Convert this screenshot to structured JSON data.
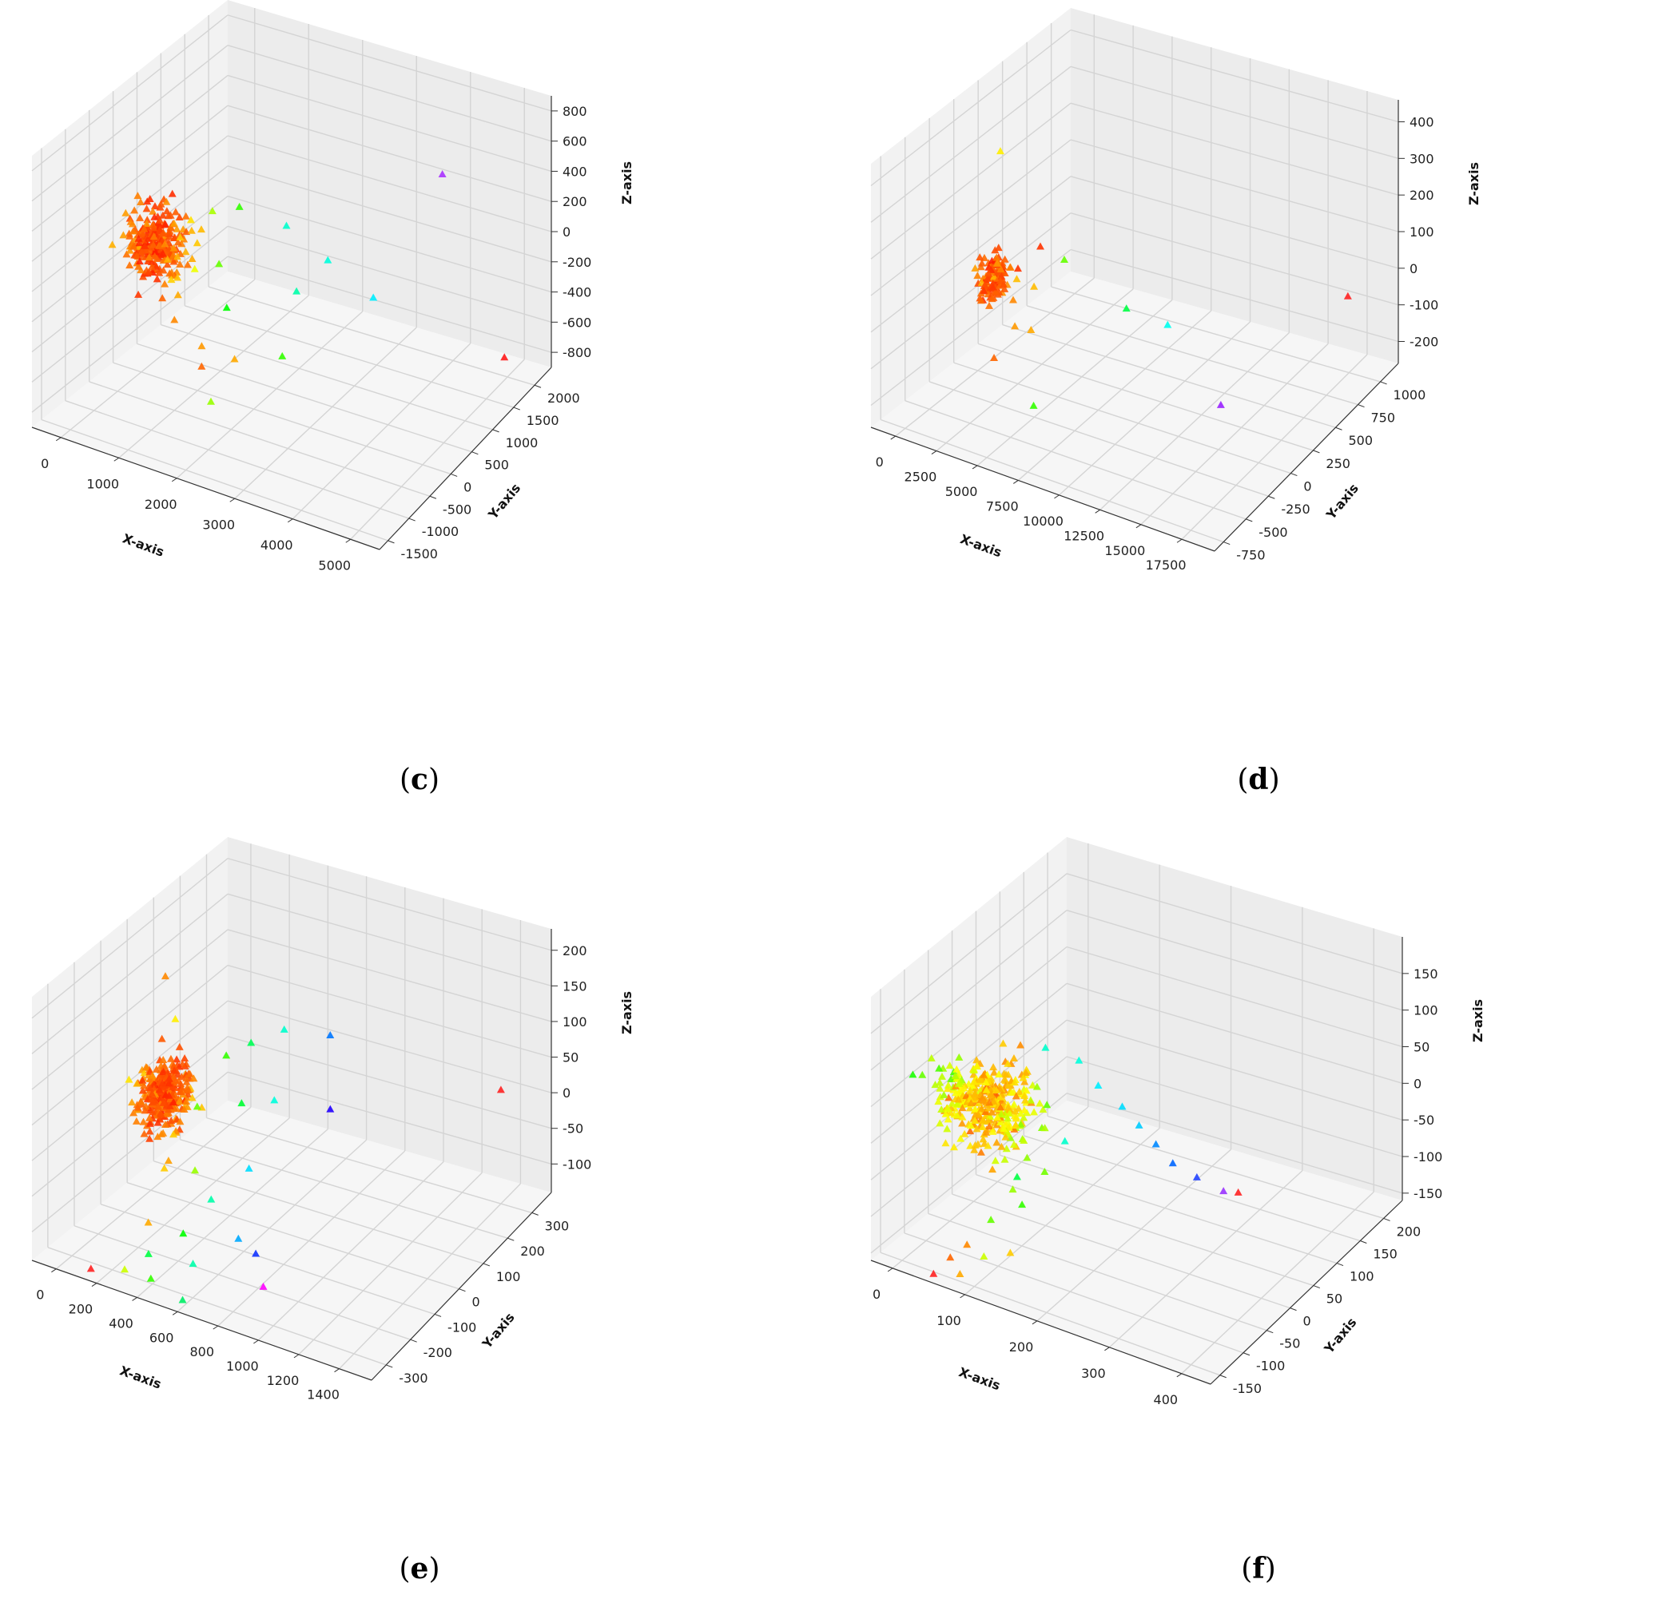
{
  "chart_data": [
    {
      "type": "scatter3d",
      "panel_label": "c",
      "xlabel": "X-axis",
      "ylabel": "Y-axis",
      "zlabel": "Z-axis",
      "xlim": [
        -500,
        5500
      ],
      "ylim": [
        -1700,
        2400
      ],
      "zlim": [
        -900,
        900
      ],
      "xticks": [
        0,
        1000,
        2000,
        3000,
        4000,
        5000
      ],
      "yticks": [
        -1500,
        -1000,
        -500,
        0,
        500,
        1000,
        1500,
        2000
      ],
      "zticks": [
        -800,
        -600,
        -400,
        -200,
        0,
        200,
        400,
        600,
        800
      ],
      "grid": true,
      "points": [
        [
          120,
          -200,
          50,
          "#ff2a00"
        ],
        [
          150,
          -100,
          -20,
          "#ff3300"
        ],
        [
          200,
          0,
          30,
          "#ff3a00"
        ],
        [
          180,
          -250,
          -80,
          "#ff2200"
        ],
        [
          260,
          -50,
          100,
          "#ff5500"
        ],
        [
          300,
          50,
          -40,
          "#ff6600"
        ],
        [
          350,
          -150,
          80,
          "#ff7a00"
        ],
        [
          420,
          0,
          0,
          "#ff8c00"
        ],
        [
          500,
          100,
          120,
          "#ffa000"
        ],
        [
          550,
          -100,
          -60,
          "#ffb000"
        ],
        [
          650,
          50,
          60,
          "#ffc800"
        ],
        [
          700,
          -200,
          -150,
          "#ffd000"
        ],
        [
          800,
          100,
          180,
          "#ffe000"
        ],
        [
          950,
          0,
          -100,
          "#eeff00"
        ],
        [
          1100,
          200,
          250,
          "#aaff00"
        ],
        [
          1300,
          100,
          -50,
          "#66ff00"
        ],
        [
          1500,
          300,
          300,
          "#33ff00"
        ],
        [
          1600,
          -100,
          -250,
          "#00ff00"
        ],
        [
          1400,
          -400,
          -450,
          "#ff9900"
        ],
        [
          1900,
          -300,
          -500,
          "#ffaa00"
        ],
        [
          1800,
          -900,
          -400,
          "#ff6600"
        ],
        [
          2500,
          100,
          350,
          "#00ffcc"
        ],
        [
          2600,
          200,
          -100,
          "#00ffaa"
        ],
        [
          3000,
          400,
          100,
          "#00ffdd"
        ],
        [
          2900,
          -500,
          -300,
          "#33ff00"
        ],
        [
          3500,
          800,
          -200,
          "#00eeff"
        ],
        [
          2200,
          -1200,
          -500,
          "#99ff00"
        ],
        [
          4200,
          1500,
          500,
          "#aa33ff"
        ],
        [
          5100,
          1800,
          -700,
          "#ff1a1a"
        ],
        [
          900,
          -300,
          -200,
          "#ffaa00"
        ],
        [
          1000,
          -500,
          -300,
          "#ff8800"
        ]
      ],
      "cluster": {
        "center": [
          300,
          -50,
          0
        ],
        "spread": [
          450,
          300,
          180
        ],
        "count": 260,
        "seed": 11
      }
    },
    {
      "type": "scatter3d",
      "panel_label": "d",
      "xlabel": "X-axis",
      "ylabel": "Y-axis",
      "zlabel": "Z-axis",
      "xlim": [
        -1500,
        19500
      ],
      "ylim": [
        -850,
        1200
      ],
      "zlim": [
        -260,
        460
      ],
      "xticks": [
        0,
        2500,
        5000,
        7500,
        10000,
        12500,
        15000,
        17500
      ],
      "yticks": [
        -750,
        -500,
        -250,
        0,
        250,
        500,
        750,
        1000
      ],
      "zticks": [
        -200,
        -100,
        0,
        100,
        200,
        300,
        400
      ],
      "grid": true,
      "points": [
        [
          800,
          100,
          330,
          "#ffee00"
        ],
        [
          1800,
          -100,
          80,
          "#ff9900"
        ],
        [
          2200,
          50,
          40,
          "#ff3300"
        ],
        [
          2500,
          -50,
          -20,
          "#ff8800"
        ],
        [
          3000,
          150,
          90,
          "#ff3300"
        ],
        [
          3200,
          -150,
          -60,
          "#ff9900"
        ],
        [
          3500,
          0,
          20,
          "#ffbb00"
        ],
        [
          4200,
          200,
          60,
          "#66ff00"
        ],
        [
          4500,
          -200,
          -40,
          "#ffaa00"
        ],
        [
          2800,
          -300,
          -120,
          "#ff6600"
        ],
        [
          7500,
          300,
          -50,
          "#00ff44"
        ],
        [
          9500,
          400,
          -90,
          "#00ffee"
        ],
        [
          7000,
          -600,
          -120,
          "#33ff00"
        ],
        [
          14000,
          200,
          -200,
          "#9922ff"
        ],
        [
          18000,
          900,
          -20,
          "#ff2222"
        ]
      ],
      "cluster": {
        "center": [
          1000,
          0,
          10
        ],
        "spread": [
          650,
          120,
          50
        ],
        "count": 120,
        "seed": 23
      }
    },
    {
      "type": "scatter3d",
      "panel_label": "e",
      "xlabel": "X-axis",
      "ylabel": "Y-axis",
      "zlabel": "Z-axis",
      "xlim": [
        -120,
        1560
      ],
      "ylim": [
        -360,
        380
      ],
      "zlim": [
        -140,
        230
      ],
      "xticks": [
        0,
        200,
        400,
        600,
        800,
        1000,
        1200,
        1400
      ],
      "yticks": [
        -300,
        -200,
        -100,
        0,
        100,
        200,
        300
      ],
      "zticks": [
        -100,
        -50,
        0,
        50,
        100,
        150,
        200
      ],
      "grid": true,
      "points": [
        [
          20,
          40,
          150,
          "#ff8800"
        ],
        [
          150,
          -20,
          120,
          "#ffee00"
        ],
        [
          250,
          100,
          40,
          "#33ff00"
        ],
        [
          300,
          -50,
          20,
          "#66ff00"
        ],
        [
          350,
          120,
          60,
          "#00ff55"
        ],
        [
          380,
          -120,
          -40,
          "#99ff00"
        ],
        [
          420,
          30,
          10,
          "#00ff33"
        ],
        [
          480,
          150,
          80,
          "#00ffcc"
        ],
        [
          500,
          -150,
          -60,
          "#00ffaa"
        ],
        [
          560,
          50,
          20,
          "#00ffdd"
        ],
        [
          600,
          -80,
          -30,
          "#00ddff"
        ],
        [
          650,
          200,
          70,
          "#0077ff"
        ],
        [
          700,
          -200,
          -80,
          "#00aaff"
        ],
        [
          780,
          100,
          10,
          "#2200ff"
        ],
        [
          850,
          -250,
          -70,
          "#1133ff"
        ],
        [
          950,
          -300,
          -90,
          "#ff00ff"
        ],
        [
          1400,
          300,
          20,
          "#ff2222"
        ],
        [
          380,
          -300,
          -100,
          "#00ff44"
        ],
        [
          300,
          -330,
          -120,
          "#ccff00"
        ],
        [
          120,
          -320,
          -140,
          "#ff2222"
        ],
        [
          200,
          -100,
          -60,
          "#ffcc00"
        ],
        [
          250,
          -200,
          -100,
          "#ffaa00"
        ],
        [
          450,
          -220,
          -90,
          "#00ff00"
        ],
        [
          550,
          -260,
          -110,
          "#00ffaa"
        ],
        [
          430,
          -330,
          -120,
          "#33ff00"
        ],
        [
          180,
          -50,
          -30,
          "#ffcc00"
        ],
        [
          600,
          -340,
          -130,
          "#00ee66"
        ]
      ],
      "cluster": {
        "center": [
          60,
          0,
          0
        ],
        "spread": [
          90,
          70,
          35
        ],
        "count": 320,
        "seed": 37
      }
    },
    {
      "type": "scatter3d",
      "panel_label": "f",
      "xlabel": "X-axis",
      "ylabel": "Y-axis",
      "zlabel": "Z-axis",
      "xlim": [
        -30,
        440
      ],
      "ylim": [
        -170,
        240
      ],
      "zlim": [
        -160,
        200
      ],
      "xticks": [
        0,
        100,
        200,
        300,
        400
      ],
      "yticks": [
        -150,
        -100,
        -50,
        0,
        50,
        100,
        150,
        200
      ],
      "zticks": [
        -150,
        -100,
        -50,
        0,
        50,
        100,
        150
      ],
      "grid": true,
      "points": [
        [
          80,
          30,
          60,
          "#00ffcc"
        ],
        [
          120,
          40,
          50,
          "#00ffdd"
        ],
        [
          160,
          20,
          40,
          "#00eeff"
        ],
        [
          200,
          10,
          30,
          "#00ddff"
        ],
        [
          230,
          0,
          20,
          "#00ccff"
        ],
        [
          260,
          -10,
          10,
          "#0088ff"
        ],
        [
          290,
          -20,
          0,
          "#0066ff"
        ],
        [
          330,
          -30,
          0,
          "#2244ff"
        ],
        [
          380,
          -50,
          10,
          "#9933ff"
        ],
        [
          420,
          -80,
          40,
          "#ff2222"
        ],
        [
          140,
          -20,
          -20,
          "#00ffcc"
        ],
        [
          100,
          -60,
          -60,
          "#00ff44"
        ],
        [
          120,
          -80,
          -80,
          "#33ff00"
        ],
        [
          90,
          -100,
          -100,
          "#66ff00"
        ],
        [
          100,
          -130,
          -130,
          "#ccff00"
        ],
        [
          80,
          -150,
          -150,
          "#ffaa00"
        ],
        [
          60,
          -140,
          -140,
          "#ff6600"
        ],
        [
          50,
          -160,
          -155,
          "#ff2222"
        ],
        [
          130,
          -120,
          -120,
          "#ffcc00"
        ],
        [
          70,
          -120,
          -130,
          "#ff8800"
        ]
      ],
      "cluster": {
        "center": [
          20,
          0,
          -20
        ],
        "spread": [
          60,
          50,
          40
        ],
        "count": 360,
        "seed": 53
      }
    }
  ]
}
